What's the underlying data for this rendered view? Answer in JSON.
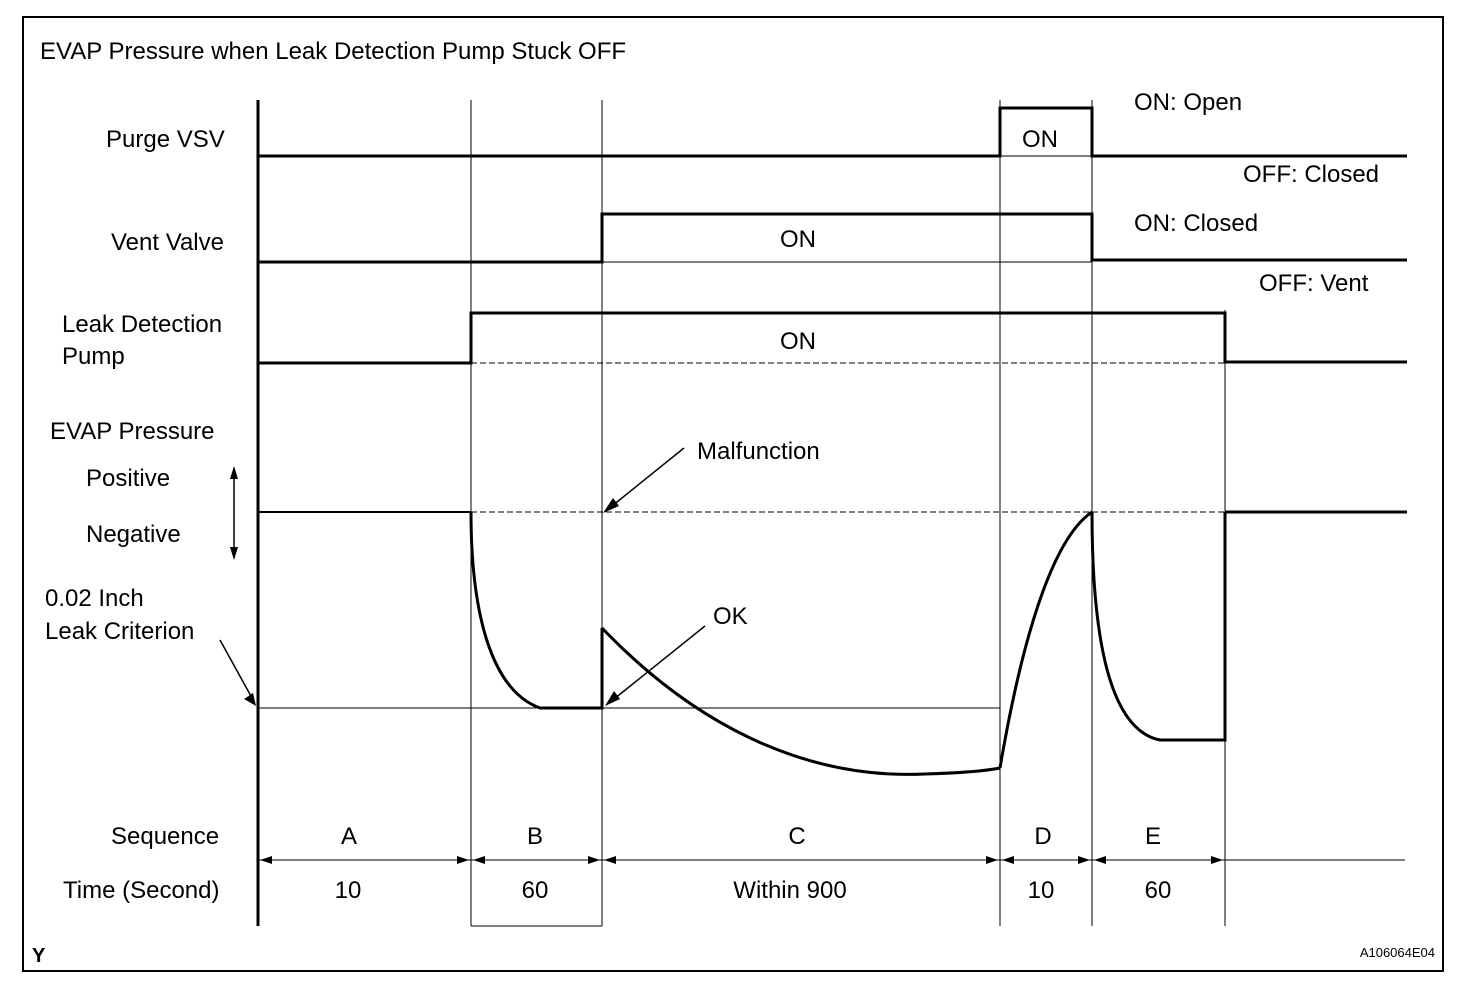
{
  "title": "EVAP Pressure when Leak Detection Pump Stuck OFF",
  "rows": {
    "purge_vsv": "Purge VSV",
    "vent_valve": "Vent Valve",
    "pump_line1": "Leak Detection",
    "pump_line2": "Pump",
    "evap_pressure": "EVAP Pressure",
    "positive": "Positive",
    "negative": "Negative",
    "criterion_line1": "0.02 Inch",
    "criterion_line2": "Leak Criterion"
  },
  "states": {
    "purge_on": "ON",
    "purge_on_meaning": "ON: Open",
    "purge_off_meaning": "OFF: Closed",
    "vent_on": "ON",
    "vent_on_meaning": "ON: Closed",
    "vent_off_meaning": "OFF: Vent",
    "pump_on": "ON"
  },
  "annotations": {
    "malfunction": "Malfunction",
    "ok": "OK"
  },
  "sequence": {
    "label": "Sequence",
    "steps": [
      "A",
      "B",
      "C",
      "D",
      "E"
    ]
  },
  "time": {
    "label": "Time (Second)",
    "values": [
      "10",
      "60",
      "Within 900",
      "10",
      "60"
    ]
  },
  "footer": {
    "corner_mark": "Y",
    "figure_id": "A106064E04"
  }
}
